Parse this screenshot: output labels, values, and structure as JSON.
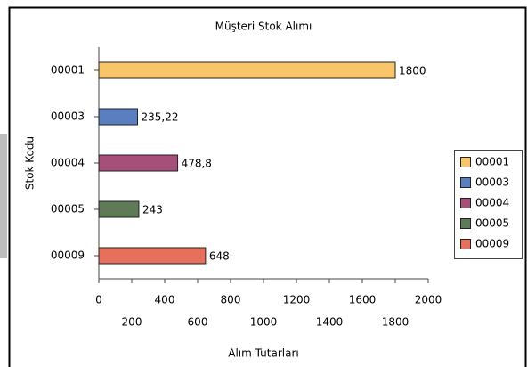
{
  "chart_data": {
    "type": "bar",
    "orientation": "horizontal",
    "title": "Müşteri Stok Alımı",
    "x_label": "Alım Tutarları",
    "y_label": "Stok Kodu",
    "categories": [
      "00001",
      "00003",
      "00004",
      "00005",
      "00009"
    ],
    "values": [
      1800,
      235.22,
      478.8,
      243,
      648
    ],
    "value_labels": [
      "1800",
      "235,22",
      "478,8",
      "243",
      "648"
    ],
    "colors": [
      "#f8c56a",
      "#5a7fc0",
      "#a64f78",
      "#5f7a57",
      "#e7705c"
    ],
    "xlim": [
      0,
      2000
    ],
    "xticks": [
      0,
      200,
      400,
      600,
      800,
      1000,
      1200,
      1400,
      1600,
      1800,
      2000
    ],
    "legend": "right"
  }
}
